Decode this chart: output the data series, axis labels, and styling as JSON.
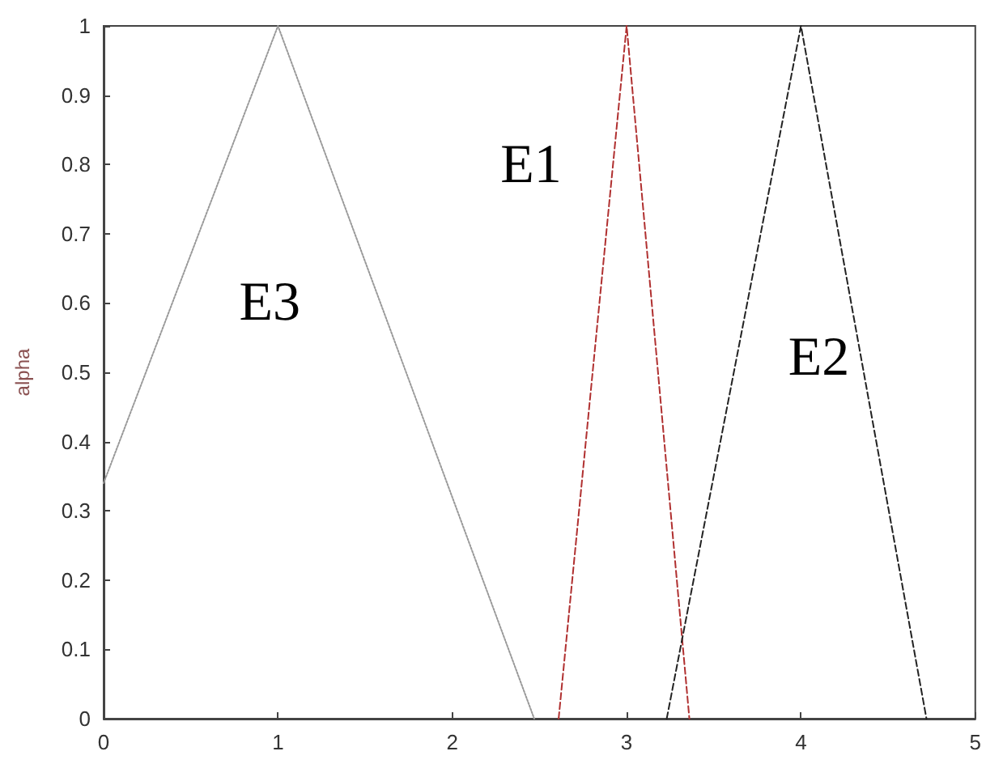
{
  "chart_data": {
    "type": "line",
    "ylabel": "alpha",
    "xlim": [
      0,
      5
    ],
    "xticks": [
      0,
      1,
      2,
      3,
      4,
      5
    ],
    "ylim": [
      0,
      1
    ],
    "yticks": [
      0,
      0.1,
      0.2,
      0.3,
      0.4,
      0.5,
      0.6,
      0.7,
      0.8,
      0.9,
      1
    ],
    "grid": false,
    "legend": false,
    "marker": "none",
    "series": [
      {
        "name": "E1",
        "color": "#b03030",
        "line_style": "dashed",
        "x": [
          2.61,
          3,
          3.36
        ],
        "values": [
          0,
          1,
          0
        ]
      },
      {
        "name": "E2",
        "color": "#222222",
        "line_style": "dashed",
        "x": [
          3.23,
          4,
          4.72
        ],
        "values": [
          0,
          1,
          0
        ]
      },
      {
        "name": "E3",
        "color": "#999999",
        "line_style": "dotted",
        "x": [
          0,
          1,
          2.47
        ],
        "values": [
          0.34,
          1,
          0
        ]
      }
    ]
  }
}
